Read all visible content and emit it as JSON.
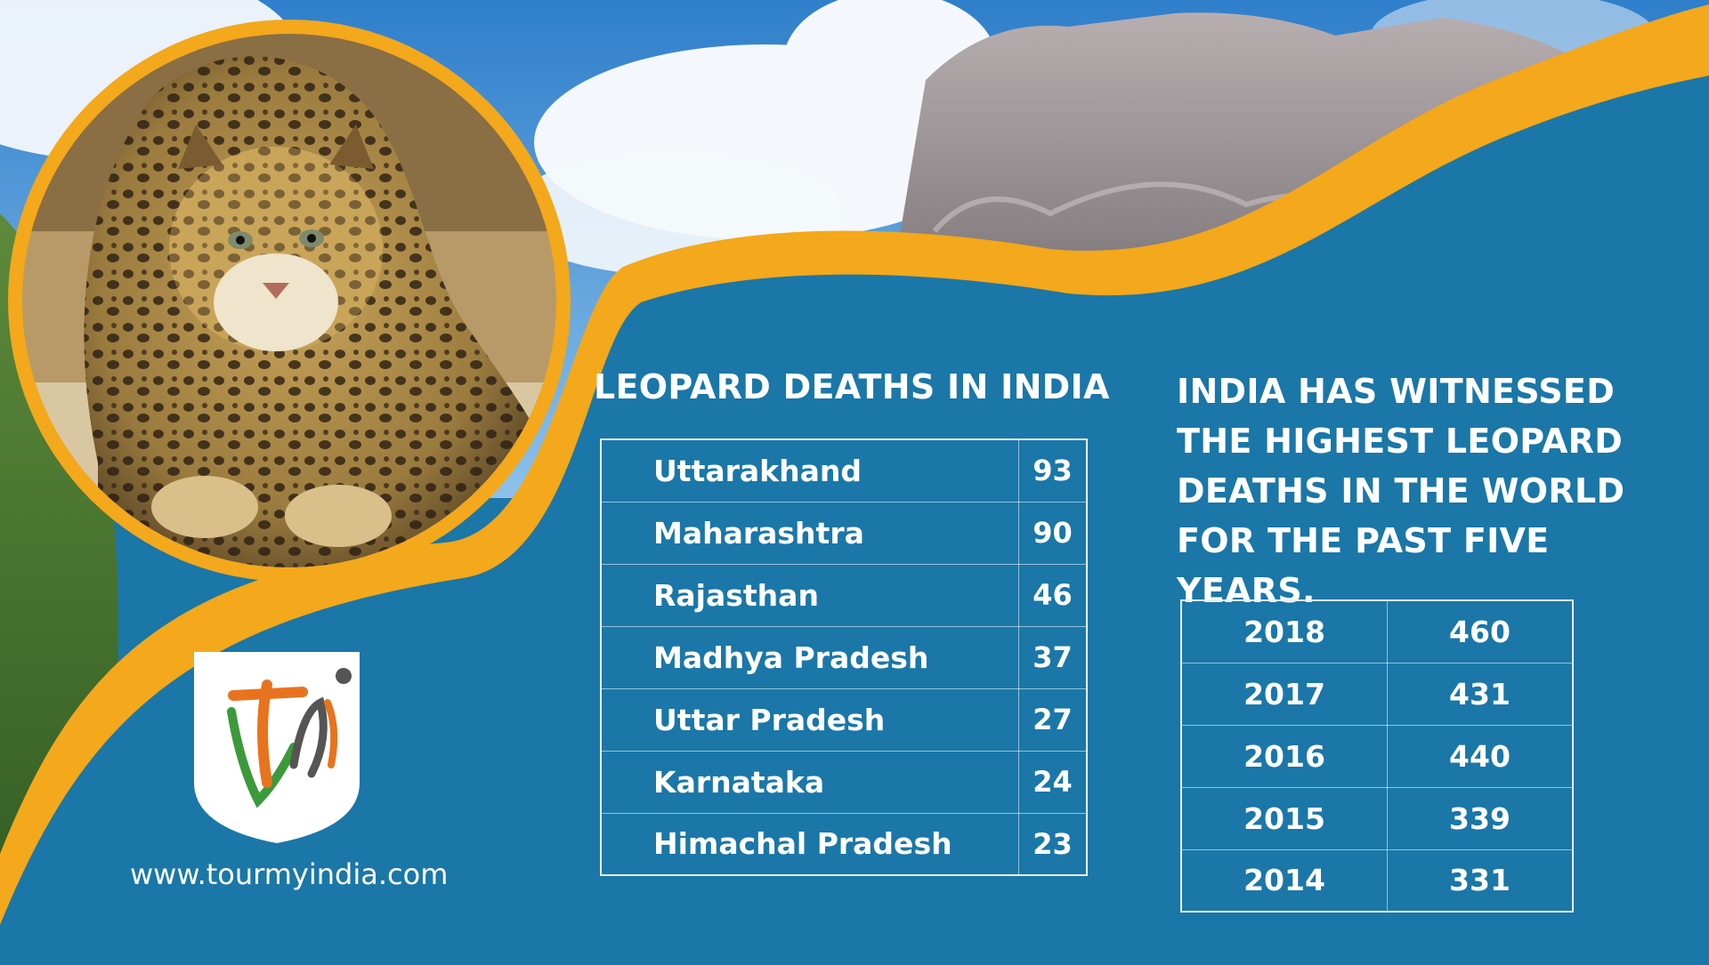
{
  "states_section": {
    "title": "LEOPARD DEATHS IN INDIA",
    "rows": [
      {
        "state": "Uttarakhand",
        "deaths": "93"
      },
      {
        "state": "Maharashtra",
        "deaths": "90"
      },
      {
        "state": "Rajasthan",
        "deaths": "46"
      },
      {
        "state": "Madhya Pradesh",
        "deaths": "37"
      },
      {
        "state": "Uttar Pradesh",
        "deaths": "27"
      },
      {
        "state": "Karnataka",
        "deaths": "24"
      },
      {
        "state": "Himachal Pradesh",
        "deaths": "23"
      }
    ]
  },
  "years_section": {
    "text": "INDIA HAS WITNESSED THE HIGHEST LEOPARD DEATHS IN THE WORLD FOR THE PAST FIVE YEARS.",
    "rows": [
      {
        "year": "2018",
        "deaths": "460"
      },
      {
        "year": "2017",
        "deaths": "431"
      },
      {
        "year": "2016",
        "deaths": "440"
      },
      {
        "year": "2015",
        "deaths": "339"
      },
      {
        "year": "2014",
        "deaths": "331"
      }
    ]
  },
  "branding": {
    "logo_text": "tmi",
    "website": "www.tourmyindia.com"
  },
  "colors": {
    "panel_blue": "#1a77a8",
    "accent_orange": "#f4a81b",
    "sky": "#5aa2dc",
    "logo_orange": "#e8731e",
    "logo_green": "#3c9a3a"
  },
  "images": {
    "background": "mountain-sky-photo",
    "circle_photo": "leopard-photo"
  }
}
